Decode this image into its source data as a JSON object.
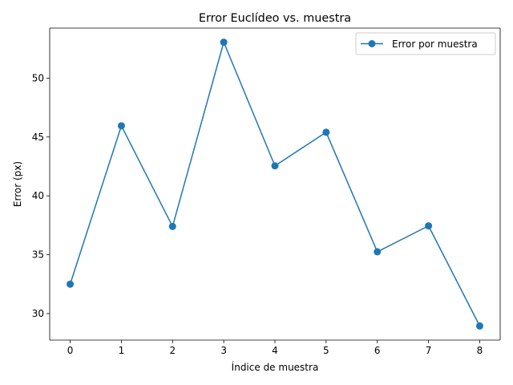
{
  "chart_data": {
    "type": "line",
    "title": "Error Euclídeo vs. muestra",
    "xlabel": "Índice de muestra",
    "ylabel": "Error (px)",
    "x": [
      0,
      1,
      2,
      3,
      4,
      5,
      6,
      7,
      8
    ],
    "series": [
      {
        "name": "Error por muestra",
        "values": [
          32.5,
          45.95,
          37.4,
          53.05,
          42.55,
          45.4,
          35.25,
          37.45,
          28.95
        ],
        "color": "#1f77b4",
        "marker": "circle"
      }
    ],
    "xlim": [
      -0.4,
      8.4
    ],
    "ylim": [
      27.75,
      54.25
    ],
    "xticks": [
      0,
      1,
      2,
      3,
      4,
      5,
      6,
      7,
      8
    ],
    "yticks": [
      30,
      35,
      40,
      45,
      50
    ],
    "grid": false,
    "legend_position": "top-right"
  }
}
